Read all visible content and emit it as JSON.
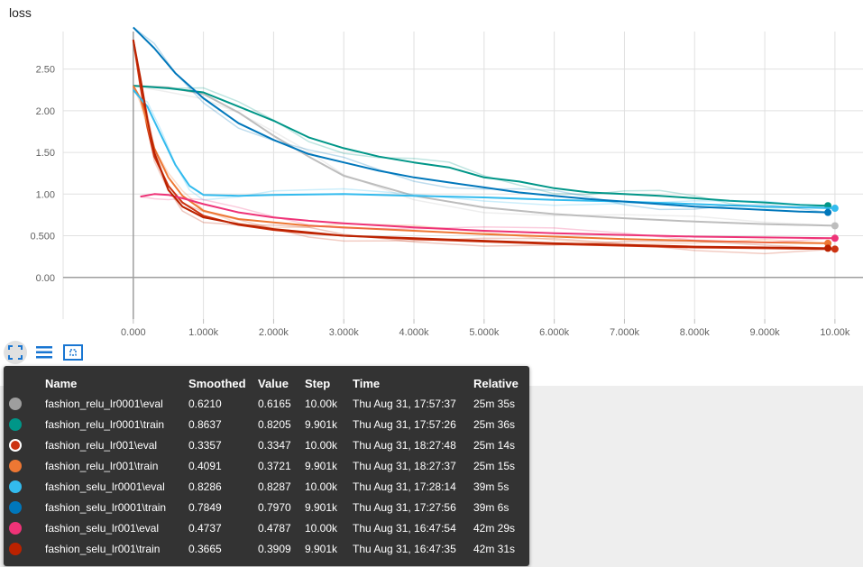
{
  "chart_data": {
    "type": "line",
    "title": "loss",
    "xlabel": "",
    "ylabel": "",
    "xlim": [
      -1000,
      10400
    ],
    "ylim": [
      -0.5,
      2.95
    ],
    "x_ticks": [
      0,
      1000,
      2000,
      3000,
      4000,
      5000,
      6000,
      7000,
      8000,
      9000,
      10000
    ],
    "x_tick_labels": [
      "0.000",
      "1.000k",
      "2.000k",
      "3.000k",
      "4.000k",
      "5.000k",
      "6.000k",
      "7.000k",
      "8.000k",
      "9.000k",
      "10.00k"
    ],
    "y_ticks": [
      0,
      0.5,
      1,
      1.5,
      2,
      2.5
    ],
    "y_tick_labels": [
      "0.00",
      "0.500",
      "1.00",
      "1.50",
      "2.00",
      "2.50"
    ],
    "grid": true,
    "series": [
      {
        "name": "fashion_relu_lr0001\\eval",
        "color": "#bdbdbd",
        "x": [
          0,
          500,
          1000,
          1500,
          2000,
          2500,
          3000,
          4000,
          5000,
          6000,
          7000,
          8000,
          9000,
          10000
        ],
        "values": [
          2.3,
          2.28,
          2.2,
          1.98,
          1.7,
          1.45,
          1.22,
          0.98,
          0.84,
          0.76,
          0.71,
          0.67,
          0.64,
          0.62
        ]
      },
      {
        "name": "fashion_relu_lr0001\\train",
        "color": "#009688",
        "x": [
          0,
          500,
          1000,
          1500,
          2000,
          2500,
          3000,
          3500,
          4000,
          4500,
          5000,
          5500,
          6000,
          6500,
          7000,
          7500,
          8000,
          8500,
          9000,
          9500,
          9900
        ],
        "values": [
          2.3,
          2.27,
          2.22,
          2.05,
          1.88,
          1.68,
          1.55,
          1.45,
          1.38,
          1.32,
          1.2,
          1.15,
          1.07,
          1.02,
          1.0,
          0.98,
          0.95,
          0.92,
          0.9,
          0.87,
          0.86
        ]
      },
      {
        "name": "fashion_relu_lr001\\eval",
        "color": "#cc3311",
        "x": [
          0,
          100,
          200,
          300,
          500,
          700,
          1000,
          1500,
          2000,
          2500,
          3000,
          4000,
          5000,
          6000,
          7000,
          8000,
          9000,
          10000
        ],
        "values": [
          2.85,
          2.3,
          1.8,
          1.45,
          1.1,
          0.9,
          0.74,
          0.63,
          0.57,
          0.53,
          0.5,
          0.46,
          0.43,
          0.4,
          0.38,
          0.36,
          0.35,
          0.34
        ]
      },
      {
        "name": "fashion_relu_lr001\\train",
        "color": "#ee7733",
        "x": [
          0,
          100,
          200,
          300,
          500,
          700,
          1000,
          1500,
          2000,
          2500,
          3000,
          4000,
          5000,
          6000,
          7000,
          8000,
          9000,
          9900
        ],
        "values": [
          2.3,
          2.15,
          1.85,
          1.55,
          1.2,
          0.98,
          0.8,
          0.7,
          0.66,
          0.62,
          0.6,
          0.56,
          0.52,
          0.49,
          0.46,
          0.44,
          0.42,
          0.41
        ]
      },
      {
        "name": "fashion_selu_lr0001\\eval",
        "color": "#33bbee",
        "x": [
          0,
          100,
          200,
          400,
          600,
          800,
          1000,
          1500,
          2000,
          3000,
          4000,
          5000,
          6000,
          7000,
          8000,
          9000,
          10000
        ],
        "values": [
          2.25,
          2.15,
          2.05,
          1.7,
          1.35,
          1.1,
          0.99,
          0.98,
          0.99,
          1.0,
          0.98,
          0.96,
          0.93,
          0.91,
          0.88,
          0.85,
          0.83
        ]
      },
      {
        "name": "fashion_selu_lr0001\\train",
        "color": "#0077bb",
        "x": [
          0,
          300,
          600,
          1000,
          1500,
          2000,
          2500,
          3000,
          3500,
          4000,
          4500,
          5000,
          5500,
          6000,
          6500,
          7000,
          7500,
          8000,
          8500,
          9000,
          9500,
          9900
        ],
        "values": [
          3.0,
          2.75,
          2.45,
          2.15,
          1.85,
          1.65,
          1.48,
          1.38,
          1.28,
          1.2,
          1.14,
          1.08,
          1.02,
          0.98,
          0.94,
          0.91,
          0.88,
          0.85,
          0.83,
          0.81,
          0.79,
          0.78
        ]
      },
      {
        "name": "fashion_selu_lr001\\eval",
        "color": "#ee3377",
        "x": [
          100,
          300,
          500,
          700,
          1000,
          1500,
          2000,
          2500,
          3000,
          4000,
          5000,
          6000,
          7000,
          8000,
          9000,
          10000
        ],
        "values": [
          0.97,
          1.0,
          0.99,
          0.95,
          0.88,
          0.78,
          0.72,
          0.68,
          0.65,
          0.6,
          0.56,
          0.53,
          0.51,
          0.49,
          0.48,
          0.47
        ]
      },
      {
        "name": "fashion_selu_lr001\\train",
        "color": "#bb2200",
        "x": [
          0,
          100,
          200,
          300,
          500,
          700,
          1000,
          1500,
          2000,
          2500,
          3000,
          4000,
          5000,
          6000,
          7000,
          8000,
          9000,
          9900
        ],
        "values": [
          2.85,
          2.4,
          1.9,
          1.5,
          1.05,
          0.85,
          0.72,
          0.64,
          0.58,
          0.54,
          0.5,
          0.47,
          0.44,
          0.41,
          0.39,
          0.37,
          0.36,
          0.35
        ]
      }
    ]
  },
  "toolbar": {
    "icons": [
      "fit-domain-icon",
      "toggle-log-icon",
      "select-region-icon"
    ]
  },
  "tooltip": {
    "headers": [
      "Name",
      "Smoothed",
      "Value",
      "Step",
      "Time",
      "Relative"
    ],
    "rows": [
      {
        "color": "#9e9e9e",
        "ring": false,
        "name": "fashion_relu_lr0001\\eval",
        "smoothed": "0.6210",
        "value": "0.6165",
        "step": "10.00k",
        "time": "Thu Aug 31, 17:57:37",
        "relative": "25m 35s"
      },
      {
        "color": "#009688",
        "ring": false,
        "name": "fashion_relu_lr0001\\train",
        "smoothed": "0.8637",
        "value": "0.8205",
        "step": "9.901k",
        "time": "Thu Aug 31, 17:57:26",
        "relative": "25m 36s"
      },
      {
        "color": "#cc3311",
        "ring": true,
        "name": "fashion_relu_lr001\\eval",
        "smoothed": "0.3357",
        "value": "0.3347",
        "step": "10.00k",
        "time": "Thu Aug 31, 18:27:48",
        "relative": "25m 14s"
      },
      {
        "color": "#ee7733",
        "ring": false,
        "name": "fashion_relu_lr001\\train",
        "smoothed": "0.4091",
        "value": "0.3721",
        "step": "9.901k",
        "time": "Thu Aug 31, 18:27:37",
        "relative": "25m 15s"
      },
      {
        "color": "#33bbee",
        "ring": false,
        "name": "fashion_selu_lr0001\\eval",
        "smoothed": "0.8286",
        "value": "0.8287",
        "step": "10.00k",
        "time": "Thu Aug 31, 17:28:14",
        "relative": "39m 5s"
      },
      {
        "color": "#0077bb",
        "ring": false,
        "name": "fashion_selu_lr0001\\train",
        "smoothed": "0.7849",
        "value": "0.7970",
        "step": "9.901k",
        "time": "Thu Aug 31, 17:27:56",
        "relative": "39m 6s"
      },
      {
        "color": "#ee3377",
        "ring": false,
        "name": "fashion_selu_lr001\\eval",
        "smoothed": "0.4737",
        "value": "0.4787",
        "step": "10.00k",
        "time": "Thu Aug 31, 16:47:54",
        "relative": "42m 29s"
      },
      {
        "color": "#bb2200",
        "ring": false,
        "name": "fashion_selu_lr001\\train",
        "smoothed": "0.3665",
        "value": "0.3909",
        "step": "9.901k",
        "time": "Thu Aug 31, 16:47:35",
        "relative": "42m 31s"
      }
    ]
  }
}
